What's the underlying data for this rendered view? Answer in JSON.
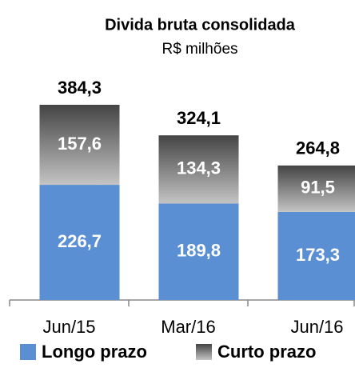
{
  "chart_data": {
    "type": "stacked_bar",
    "title": "Divida bruta consolidada",
    "subtitle": "R$ milhões",
    "categories": [
      "Jun/15",
      "Mar/16",
      "Jun/16"
    ],
    "series": [
      {
        "name": "Longo prazo",
        "color": "#5b8fd4",
        "values": [
          226.7,
          189.8,
          173.3
        ],
        "value_labels": [
          "226,7",
          "189,8",
          "173,3"
        ]
      },
      {
        "name": "Curto prazo",
        "color": "#6e6e6e",
        "values": [
          157.6,
          134.3,
          91.5
        ],
        "value_labels": [
          "157,6",
          "134,3",
          "91,5"
        ]
      }
    ],
    "totals": [
      384.3,
      324.1,
      264.8
    ],
    "total_labels": [
      "384,3",
      "324,1",
      "264,8"
    ]
  }
}
